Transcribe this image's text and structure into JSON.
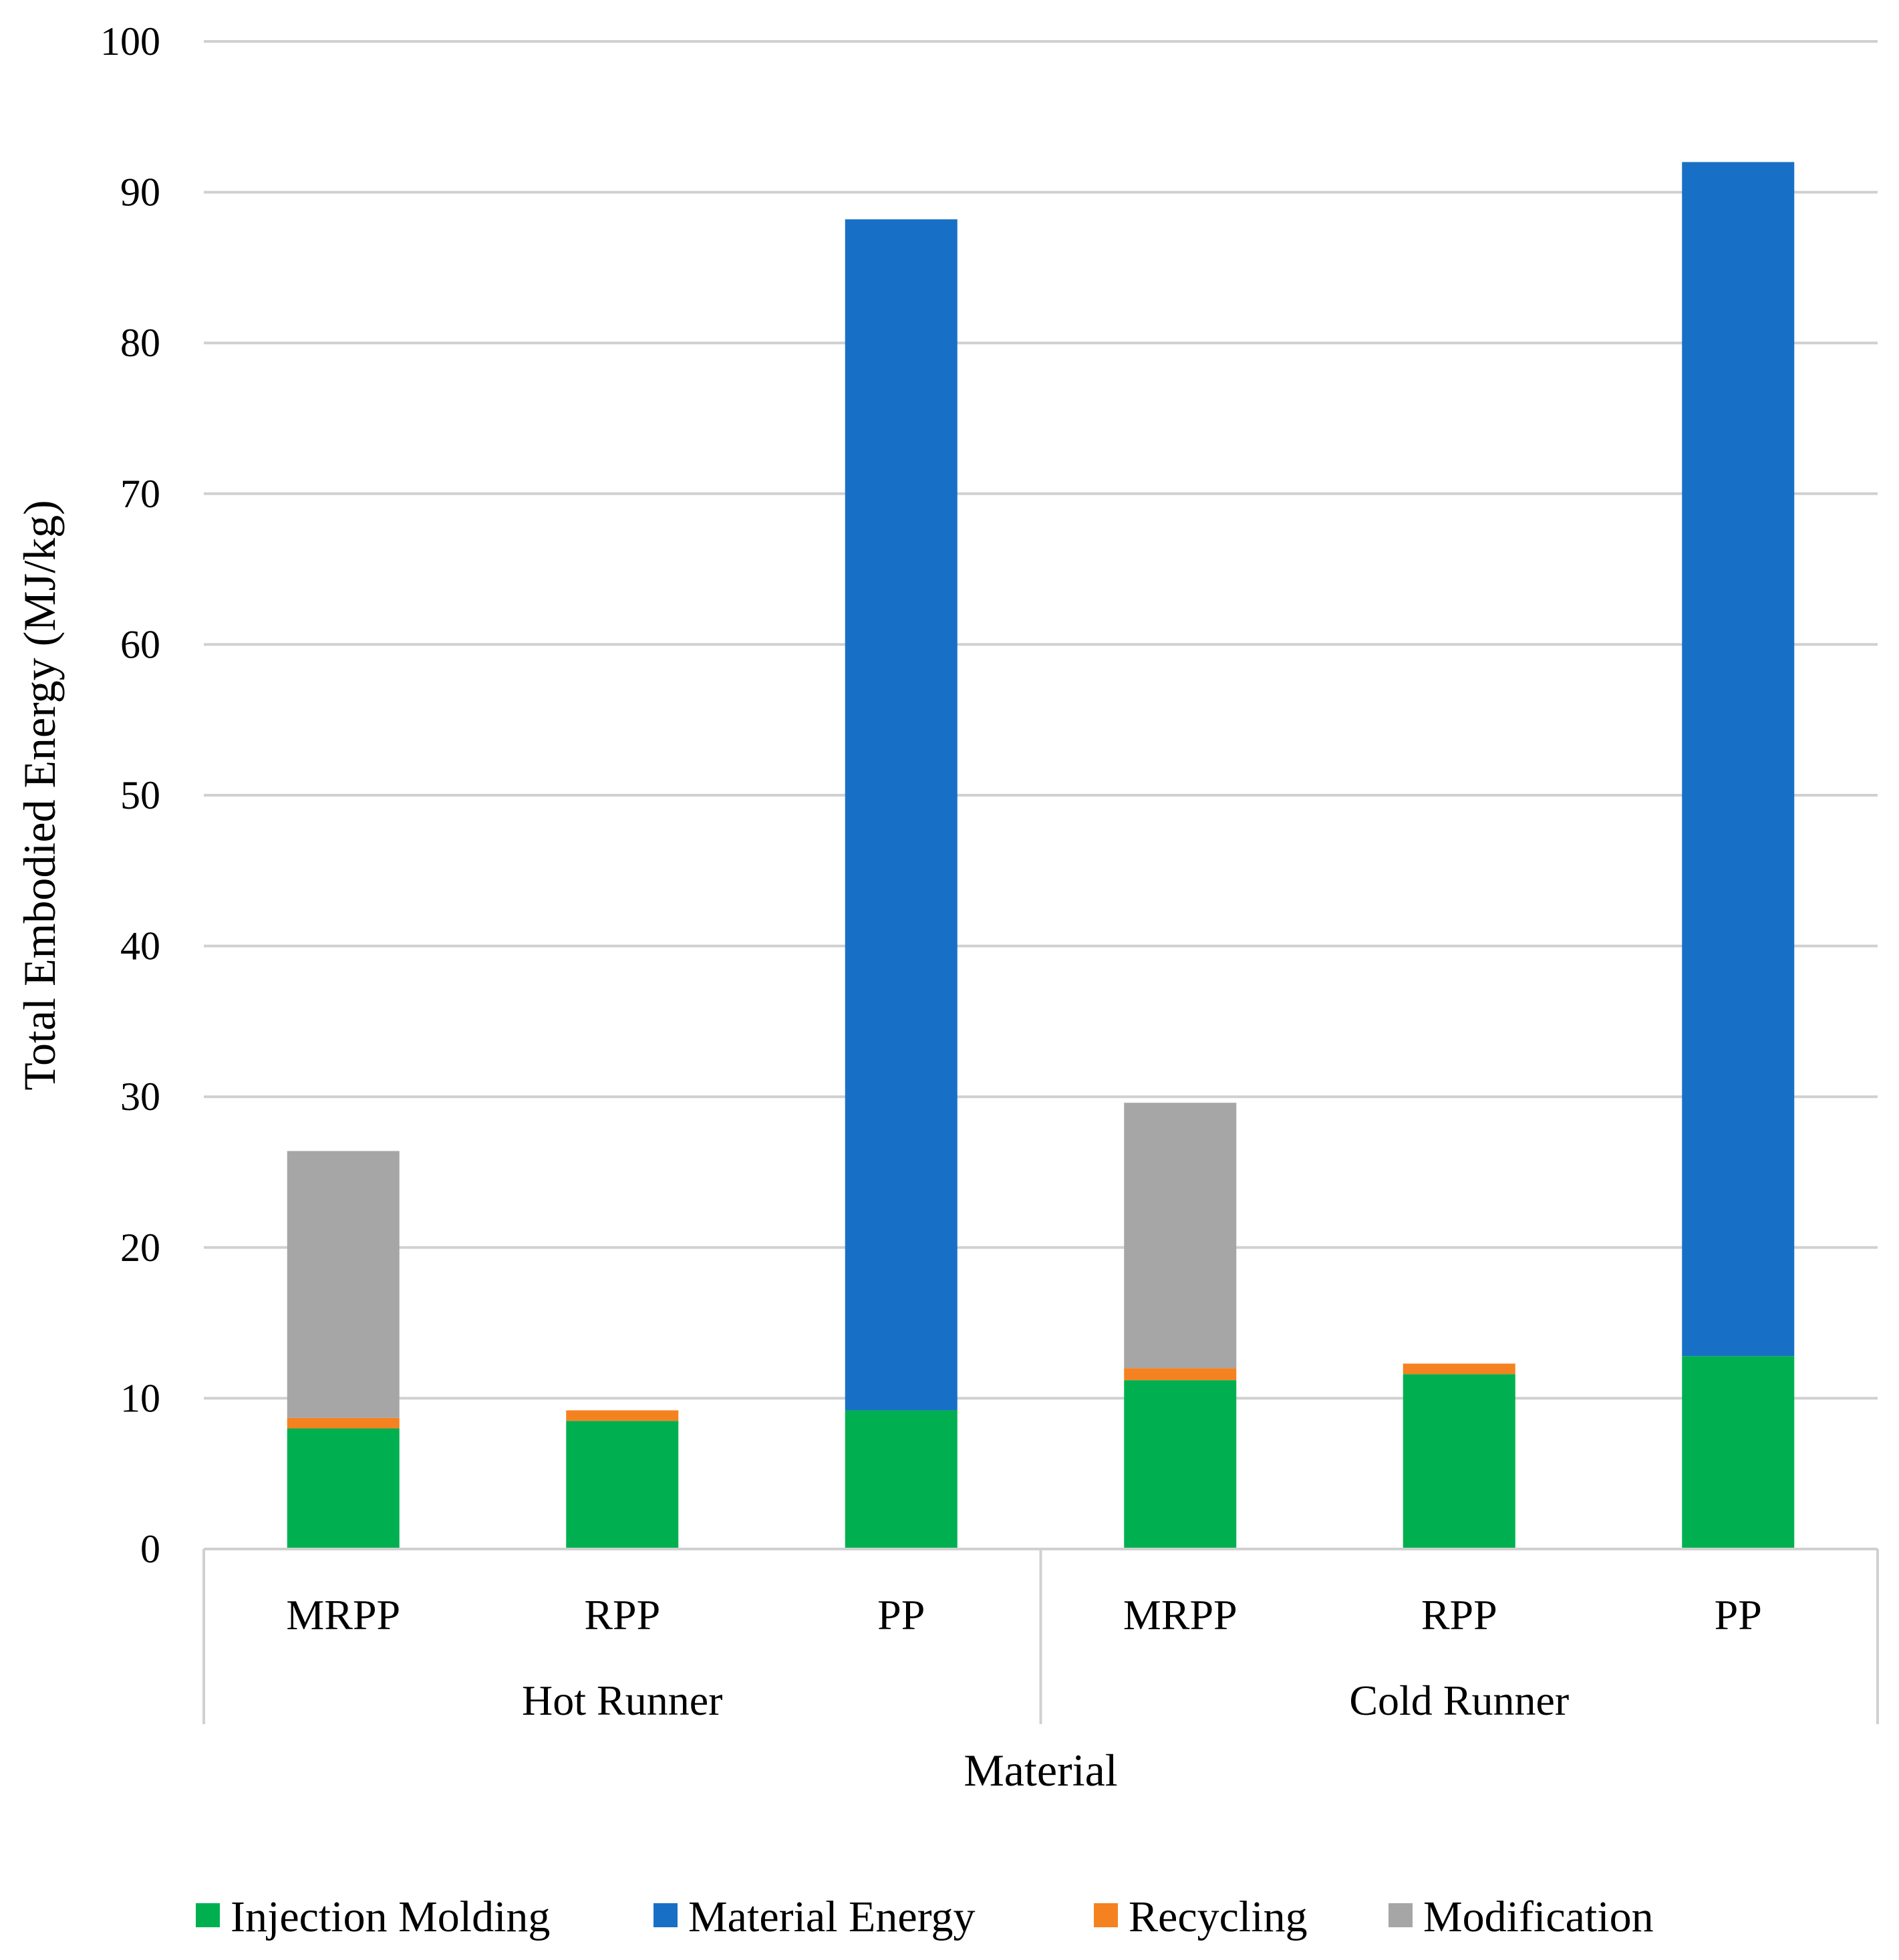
{
  "chart_data": {
    "type": "bar",
    "stacked": true,
    "title": "",
    "xlabel": "Material",
    "ylabel": "Total Embodied Energy (MJ/kg)",
    "ylim": [
      0,
      100
    ],
    "yticks": [
      0,
      10,
      20,
      30,
      40,
      50,
      60,
      70,
      80,
      90,
      100
    ],
    "grid": true,
    "legend_position": "bottom",
    "groups": [
      {
        "label": "Hot Runner",
        "categories": [
          "MRPP",
          "RPP",
          "PP"
        ]
      },
      {
        "label": "Cold Runner",
        "categories": [
          "MRPP",
          "RPP",
          "PP"
        ]
      }
    ],
    "categories": [
      "MRPP",
      "RPP",
      "PP",
      "MRPP",
      "RPP",
      "PP"
    ],
    "series": [
      {
        "name": "Injection Molding",
        "color": "#00B050",
        "values": [
          8.0,
          8.5,
          9.2,
          11.2,
          11.6,
          12.8
        ]
      },
      {
        "name": "Material Energy",
        "color": "#1870C6",
        "values": [
          0,
          0,
          79.0,
          0,
          0,
          79.2
        ]
      },
      {
        "name": "Recycling",
        "color": "#F58220",
        "values": [
          0.7,
          0.7,
          0,
          0.8,
          0.7,
          0
        ]
      },
      {
        "name": "Modification",
        "color": "#A6A6A6",
        "values": [
          17.7,
          0,
          0,
          17.6,
          0,
          0
        ]
      }
    ]
  }
}
